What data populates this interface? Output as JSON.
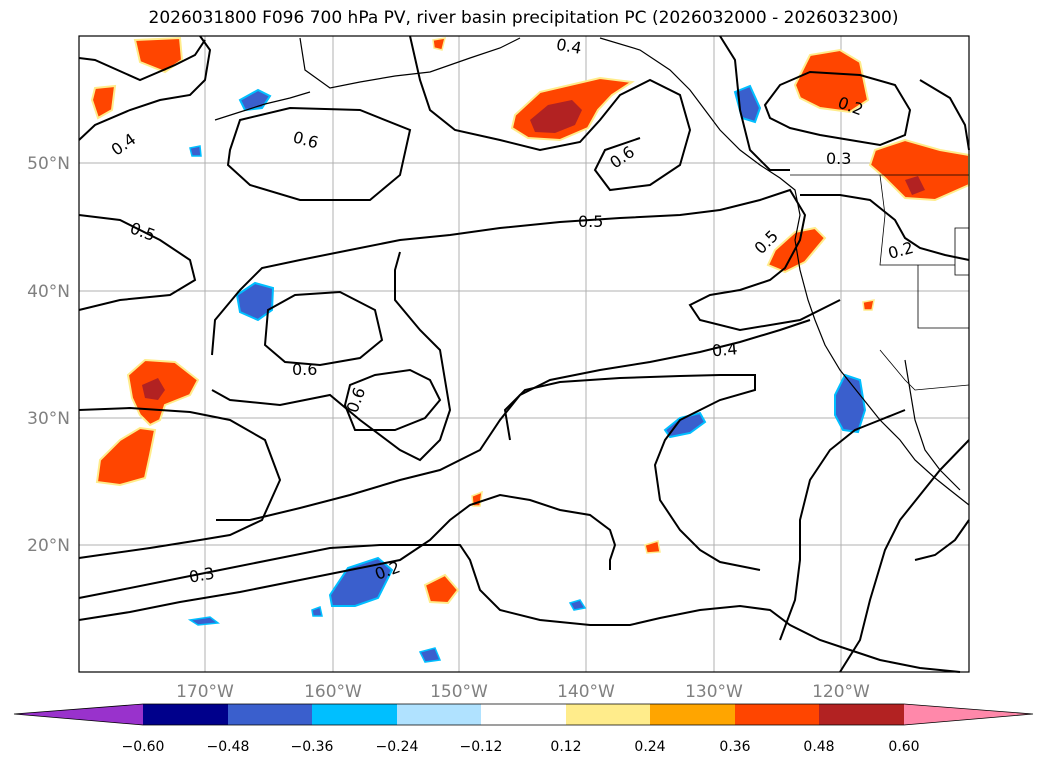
{
  "title": "2026031800 F096 700 hPa PV, river basin precipitation PC (2026032000 - 2026032300)",
  "map": {
    "lat_labels": [
      "50°N",
      "40°N",
      "30°N",
      "20°N"
    ],
    "lon_labels": [
      "170°W",
      "160°W",
      "150°W",
      "140°W",
      "130°W",
      "120°W"
    ],
    "contour_labels": [
      "0.4",
      "0.6",
      "0.5",
      "0.6",
      "0.5",
      "0.6",
      "0.6",
      "0.4",
      "0.3",
      "0.2",
      "0.3",
      "0.4",
      "0.5",
      "0.2",
      "0.2"
    ]
  },
  "colorbar": {
    "colors": [
      "#9932cc",
      "#00008b",
      "#3a5fcd",
      "#00bfff",
      "#b0e2ff",
      "#ffffff",
      "#ffec8b",
      "#ffa500",
      "#ff4500",
      "#b22222",
      "#ff88aa"
    ],
    "tick_labels": [
      "−0.60",
      "−0.48",
      "−0.36",
      "−0.24",
      "−0.12",
      "0.12",
      "0.24",
      "0.36",
      "0.48",
      "0.60"
    ]
  }
}
